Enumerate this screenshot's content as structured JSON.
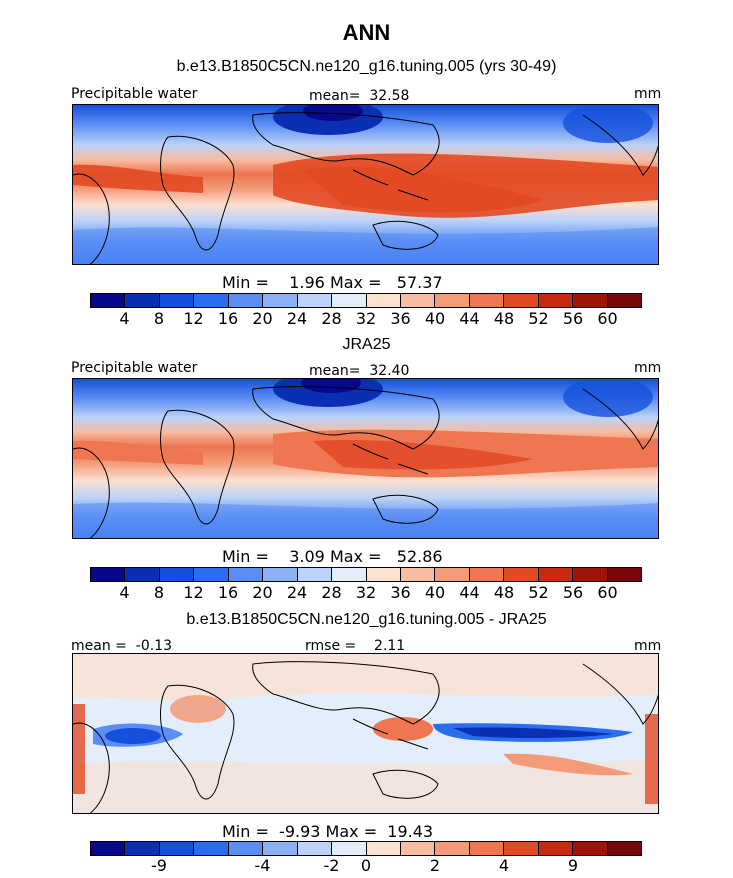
{
  "header": {
    "title": "ANN",
    "subtitle": "b.e13.B1850C5CN.ne120_g16.tuning.005 (yrs 30-49)"
  },
  "panels": [
    {
      "id": "model",
      "heading": "",
      "left_label": "Precipitable water",
      "center_label": "mean=  32.58",
      "right_label": "mm",
      "stats": "Min =    1.96 Max =   57.37",
      "colorbar_ticks": [
        "4",
        "8",
        "12",
        "16",
        "20",
        "24",
        "28",
        "32",
        "36",
        "40",
        "44",
        "48",
        "52",
        "56",
        "60"
      ]
    },
    {
      "id": "obs",
      "heading": "JRA25",
      "left_label": "Precipitable water",
      "center_label": "mean=  32.40",
      "right_label": "mm",
      "stats": "Min =    3.09 Max =   52.86",
      "colorbar_ticks": [
        "4",
        "8",
        "12",
        "16",
        "20",
        "24",
        "28",
        "32",
        "36",
        "40",
        "44",
        "48",
        "52",
        "56",
        "60"
      ]
    },
    {
      "id": "diff",
      "heading": "b.e13.B1850C5CN.ne120_g16.tuning.005 - JRA25",
      "left_label": "mean =  -0.13",
      "center_label": "rmse =    2.11",
      "right_label": "mm",
      "stats": "Min =  -9.93 Max =  19.43",
      "colorbar_ticks": [
        "-9",
        "-4",
        "-2",
        "0",
        "2",
        "4",
        "9"
      ]
    }
  ],
  "colors": {
    "abs_scale": [
      "#08088c",
      "#0a2fb4",
      "#1450dc",
      "#2a6ef0",
      "#5a8ef5",
      "#8cb0f5",
      "#bcd2f8",
      "#e4eefb",
      "#fce0d0",
      "#f8bca0",
      "#f39a78",
      "#ee7650",
      "#e24a24",
      "#c82a10",
      "#a01408",
      "#78060a"
    ],
    "diff_scale": [
      "#08088c",
      "#0a2fb4",
      "#1450dc",
      "#2a6ef0",
      "#5a8ef5",
      "#8cb0f5",
      "#bcd2f8",
      "#e4eefb",
      "#fce0d0",
      "#f8bca0",
      "#f39a78",
      "#ee7650",
      "#e24a24",
      "#c82a10",
      "#a01408",
      "#78060a"
    ]
  }
}
